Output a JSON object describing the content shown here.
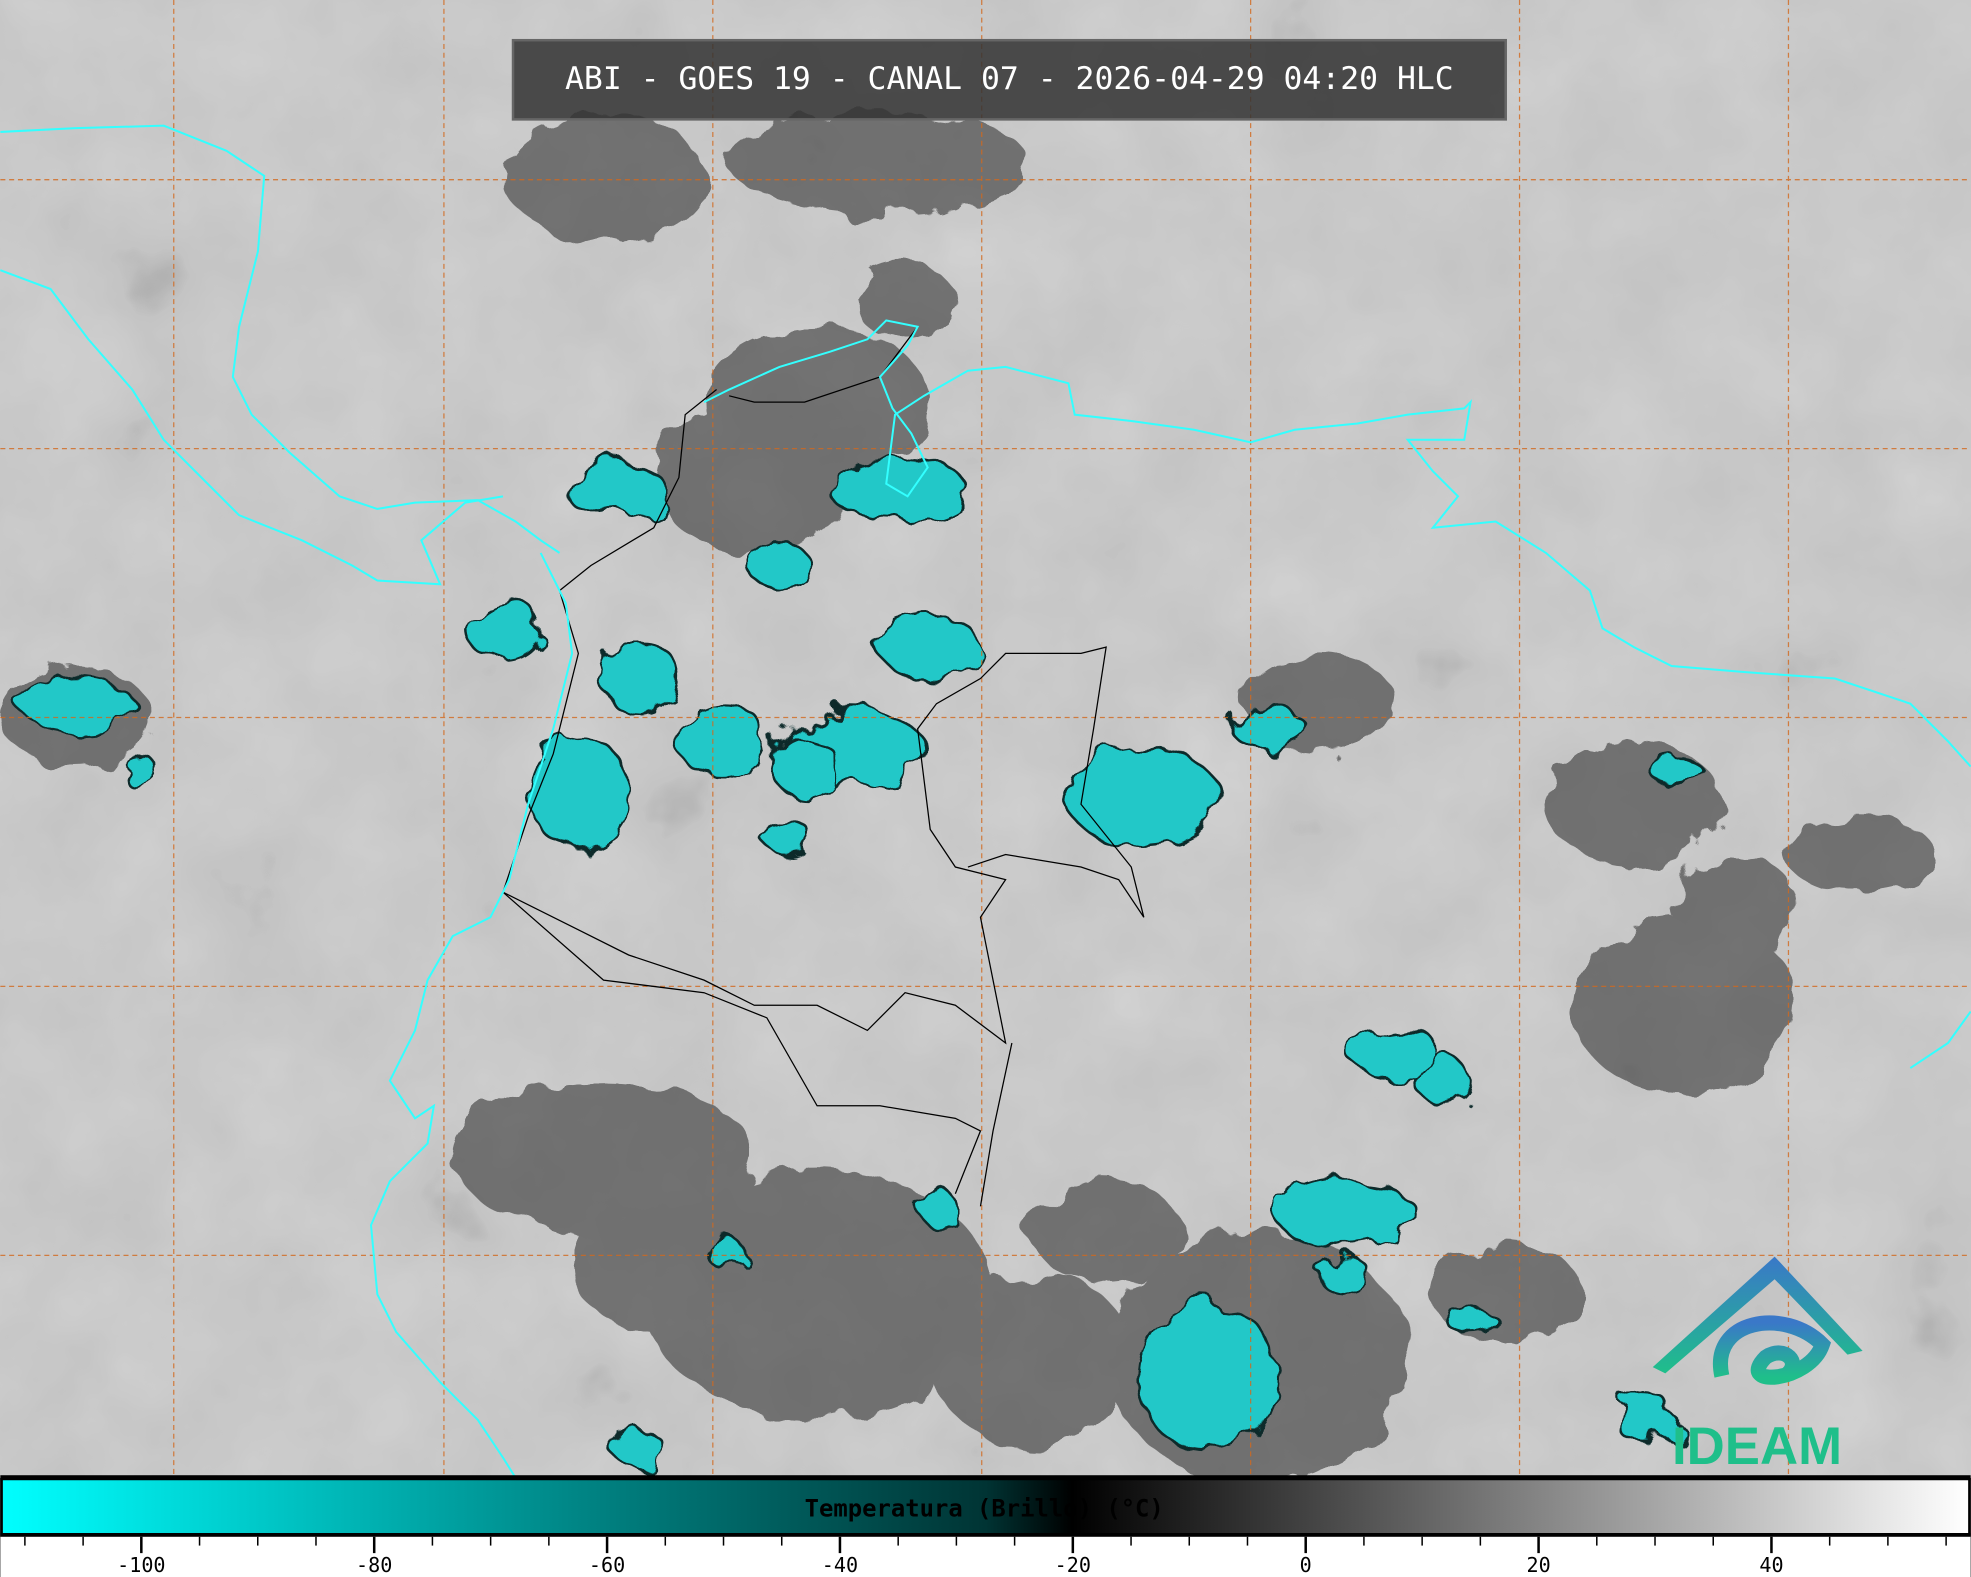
{
  "title": "ABI - GOES 19 - CANAL 07 - 2026-04-29 04:20 HLC",
  "logo": {
    "text": "IDEAM",
    "colors": {
      "top": "#3a78c8",
      "bottom": "#1fbf8a"
    }
  },
  "colorbar": {
    "label": "Temperatura (Brillo) (°C)",
    "range": [
      -112,
      57
    ],
    "major_ticks": [
      -100,
      -80,
      -60,
      -40,
      -20,
      0,
      20,
      40
    ],
    "tick_labels": [
      "-100",
      "-80",
      "-60",
      "-40",
      "-20",
      "0",
      "20",
      "40"
    ],
    "minor_tick_step": 5,
    "colors": {
      "cold": "#00ffff",
      "mid": "#007f7f",
      "threshold": "#000000",
      "warm": "#ffffff"
    }
  },
  "map": {
    "colors": {
      "background": "#8c8c8c",
      "coastline": "#33ffff",
      "borders": "#000000",
      "grid": "#d2691e",
      "cold_cloud": "#22c8c8"
    }
  }
}
